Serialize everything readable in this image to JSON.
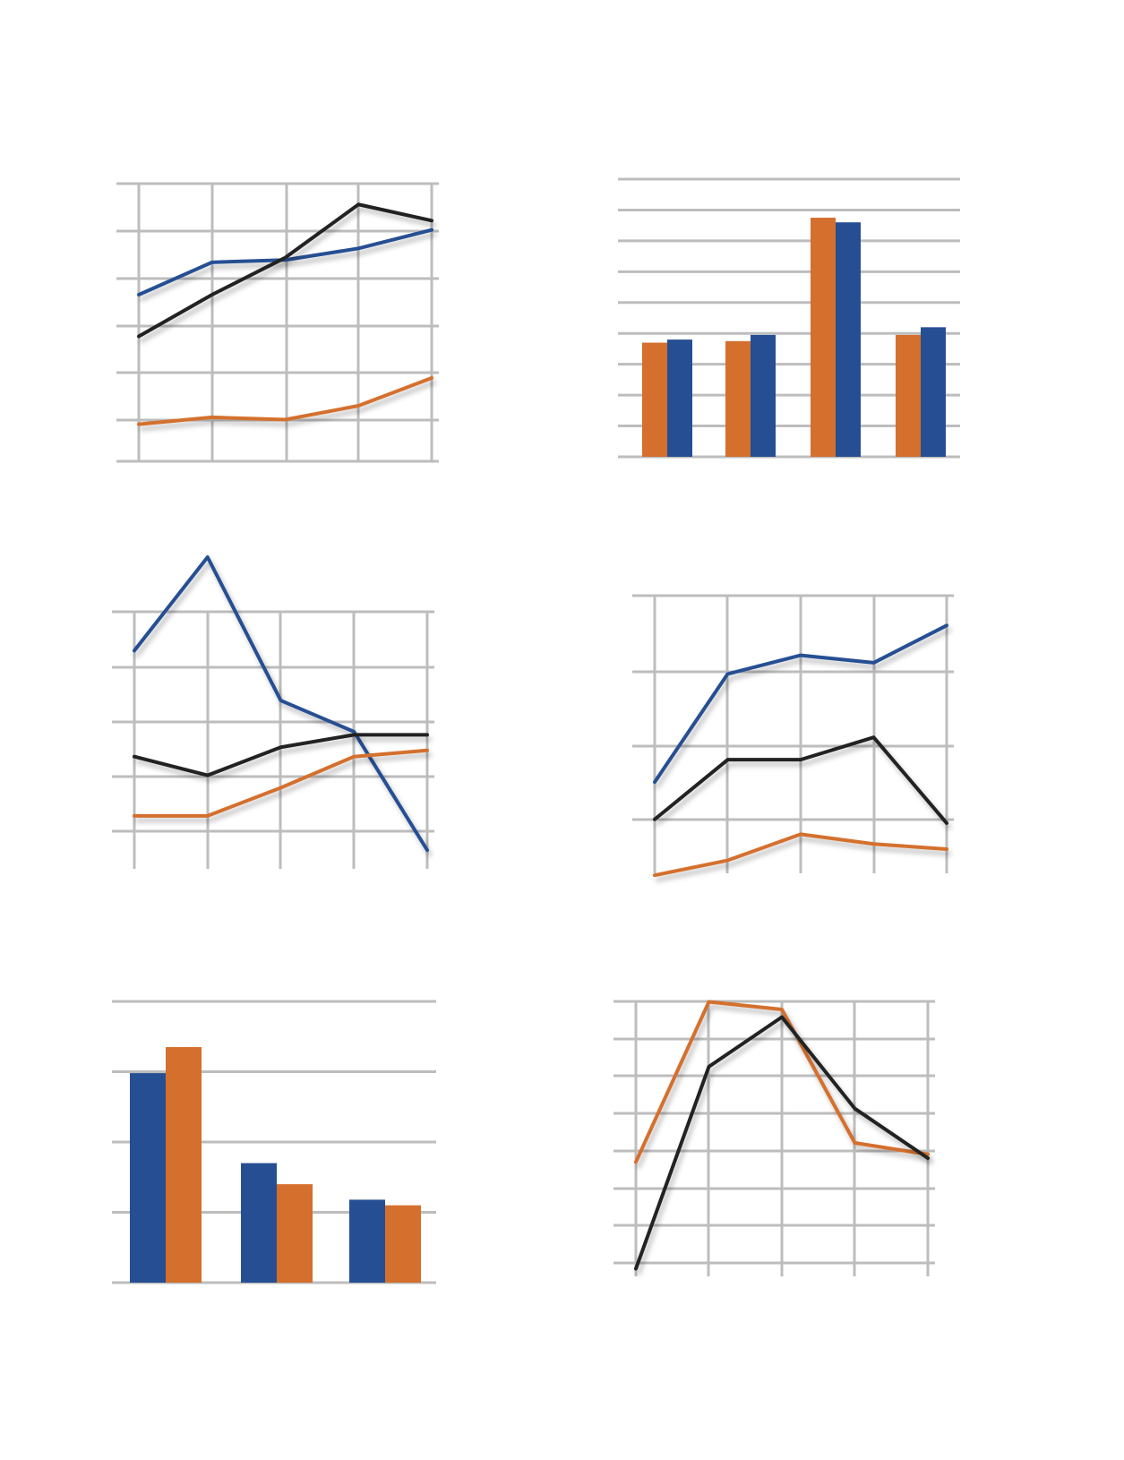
{
  "colors": {
    "blue": "#264f93",
    "orange": "#d46f2e",
    "black": "#222222",
    "grid": "#bdbdbd"
  },
  "chart_data": [
    {
      "type": "line",
      "grid": true,
      "x": [
        0,
        1,
        2,
        3,
        4
      ],
      "xlim": [
        0,
        4
      ],
      "ylim": [
        0,
        6
      ],
      "series": [
        {
          "color": "#264f93",
          "values": [
            3.6,
            4.3,
            4.35,
            4.6,
            5.0
          ]
        },
        {
          "color": "#222222",
          "values": [
            2.7,
            3.6,
            4.4,
            5.55,
            5.2
          ]
        },
        {
          "color": "#d46f2e",
          "values": [
            0.8,
            0.95,
            0.9,
            1.2,
            1.8
          ]
        }
      ]
    },
    {
      "type": "bar",
      "grid": true,
      "categories": [
        "",
        "",
        "",
        ""
      ],
      "ylim": [
        0,
        9
      ],
      "series": [
        {
          "color": "#d46f2e",
          "values": [
            3.7,
            3.75,
            7.75,
            3.95
          ]
        },
        {
          "color": "#264f93",
          "values": [
            3.8,
            3.95,
            7.6,
            4.2
          ]
        }
      ]
    },
    {
      "type": "line",
      "grid": true,
      "x": [
        0,
        1,
        2,
        3,
        4
      ],
      "xlim": [
        0,
        4
      ],
      "ylim": [
        0,
        5
      ],
      "series": [
        {
          "color": "#264f93",
          "values": [
            3.5,
            5.0,
            2.7,
            2.2,
            0.3
          ]
        },
        {
          "color": "#222222",
          "values": [
            1.8,
            1.5,
            1.95,
            2.15,
            2.15
          ]
        },
        {
          "color": "#d46f2e",
          "values": [
            0.85,
            0.85,
            1.3,
            1.8,
            1.9
          ]
        }
      ]
    },
    {
      "type": "line",
      "grid": true,
      "x": [
        0,
        1,
        2,
        3,
        4
      ],
      "xlim": [
        0,
        4
      ],
      "ylim": [
        0,
        4
      ],
      "series": [
        {
          "color": "#264f93",
          "values": [
            1.5,
            2.95,
            3.2,
            3.1,
            3.6
          ]
        },
        {
          "color": "#222222",
          "values": [
            1.0,
            1.8,
            1.8,
            2.1,
            0.95
          ]
        },
        {
          "color": "#d46f2e",
          "values": [
            0.25,
            0.45,
            0.8,
            0.67,
            0.6
          ]
        }
      ]
    },
    {
      "type": "bar",
      "grid": true,
      "categories": [
        "",
        "",
        ""
      ],
      "ylim": [
        0,
        4
      ],
      "series": [
        {
          "color": "#264f93",
          "values": [
            2.98,
            1.7,
            1.18
          ]
        },
        {
          "color": "#d46f2e",
          "values": [
            3.35,
            1.4,
            1.1
          ]
        }
      ]
    },
    {
      "type": "line",
      "grid": true,
      "x": [
        0,
        1,
        2,
        3,
        4
      ],
      "xlim": [
        0,
        4
      ],
      "ylim": [
        0,
        7
      ],
      "series": [
        {
          "color": "#d46f2e",
          "values": [
            3.0,
            7.2,
            7.0,
            3.5,
            3.2
          ]
        },
        {
          "color": "#222222",
          "values": [
            0.2,
            5.5,
            6.8,
            4.4,
            3.1
          ]
        }
      ]
    }
  ]
}
